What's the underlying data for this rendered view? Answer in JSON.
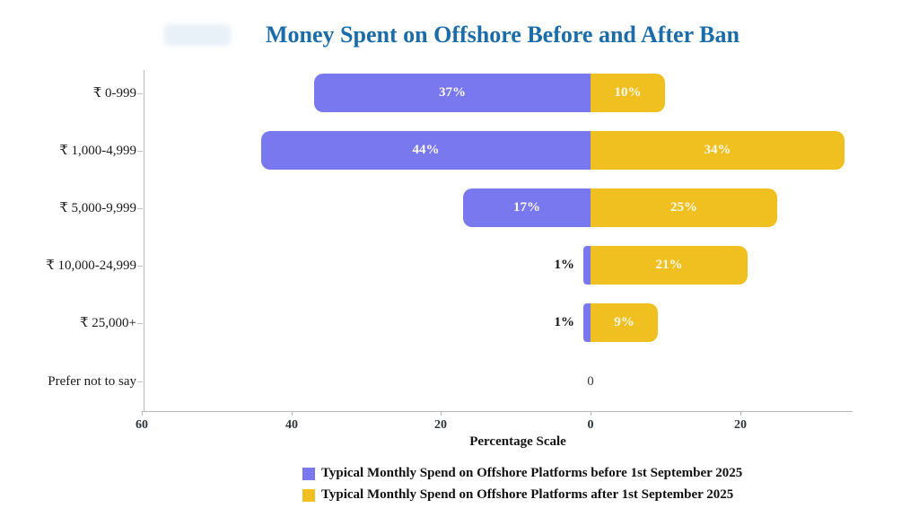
{
  "title": "Money Spent on Offshore Before and After Ban",
  "chart_data": {
    "type": "bar",
    "variant": "diverging-horizontal",
    "title": "Money Spent on Offshore Before and After Ban",
    "categories": [
      "₹ 0-999",
      "₹ 1,000-4,999",
      "₹ 5,000-9,999",
      "₹ 10,000-24,999",
      "₹ 25,000+",
      "Prefer not to say"
    ],
    "series": [
      {
        "name": "Typical Monthly Spend on Offshore Platforms before 1st September 2025",
        "side": "left",
        "color": "#7a78ef",
        "values": [
          37,
          44,
          17,
          1,
          1,
          0
        ]
      },
      {
        "name": "Typical Monthly Spend on Offshore Platforms after 1st September 2025",
        "side": "right",
        "color": "#efc020",
        "values": [
          10,
          34,
          25,
          21,
          9,
          0
        ]
      }
    ],
    "value_labels": [
      [
        "37%",
        "10%"
      ],
      [
        "44%",
        "34%"
      ],
      [
        "17%",
        "25%"
      ],
      [
        "1%",
        "21%"
      ],
      [
        "1%",
        "9%"
      ],
      [
        "0",
        ""
      ]
    ],
    "zero_row_label": "0",
    "xlabel": "Percentage Scale",
    "x_ticks": [
      "60",
      "40",
      "20",
      "0",
      "20"
    ],
    "x_tick_values": [
      -60,
      -40,
      -20,
      0,
      20
    ],
    "xlim": [
      -60,
      35
    ],
    "grid": false,
    "legend_position": "bottom",
    "colors": {
      "title": "#1b6ca9",
      "before_bar": "#7a78ef",
      "after_bar": "#efc020",
      "bar_label": "#fbf9f0",
      "axis": "#b8b8b8",
      "text": "#141414"
    }
  }
}
